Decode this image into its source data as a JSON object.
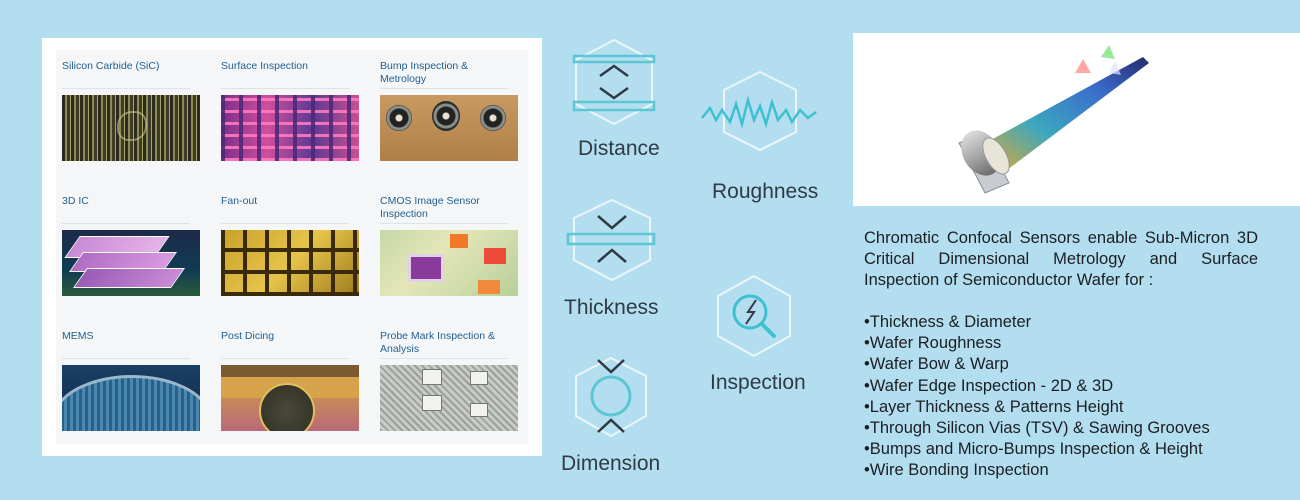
{
  "gallery": {
    "items": [
      {
        "label": "Silicon Carbide (SiC)"
      },
      {
        "label": "Surface Inspection"
      },
      {
        "label": "Bump Inspection & Metrology"
      },
      {
        "label": "3D IC"
      },
      {
        "label": "Fan-out"
      },
      {
        "label": "CMOS Image Sensor Inspection"
      },
      {
        "label": "MEMS"
      },
      {
        "label": "Post Dicing"
      },
      {
        "label": "Probe Mark Inspection & Analysis"
      }
    ]
  },
  "measurements": {
    "distance": "Distance",
    "roughness": "Roughness",
    "thickness": "Thickness",
    "inspection": "Inspection",
    "dimension": "Dimension"
  },
  "description": "Chromatic Confocal Sensors enable Sub-Micron 3D Critical Dimensional Metrology and Surface Inspection of Semiconductor Wafer for :",
  "applications": [
    "•Thickness & Diameter",
    "•Wafer Roughness",
    "•Wafer Bow & Warp",
    "•Wafer Edge Inspection - 2D & 3D",
    "•Layer Thickness & Patterns Height",
    "•Through Silicon Vias (TSV) & Sawing Grooves",
    "•Bumps and Micro-Bumps  Inspection & Height",
    "•Wire Bonding Inspection"
  ],
  "colors": {
    "background": "#b3def0",
    "icon_accent": "#5cc6d4",
    "label_blue": "#1f5f92"
  }
}
